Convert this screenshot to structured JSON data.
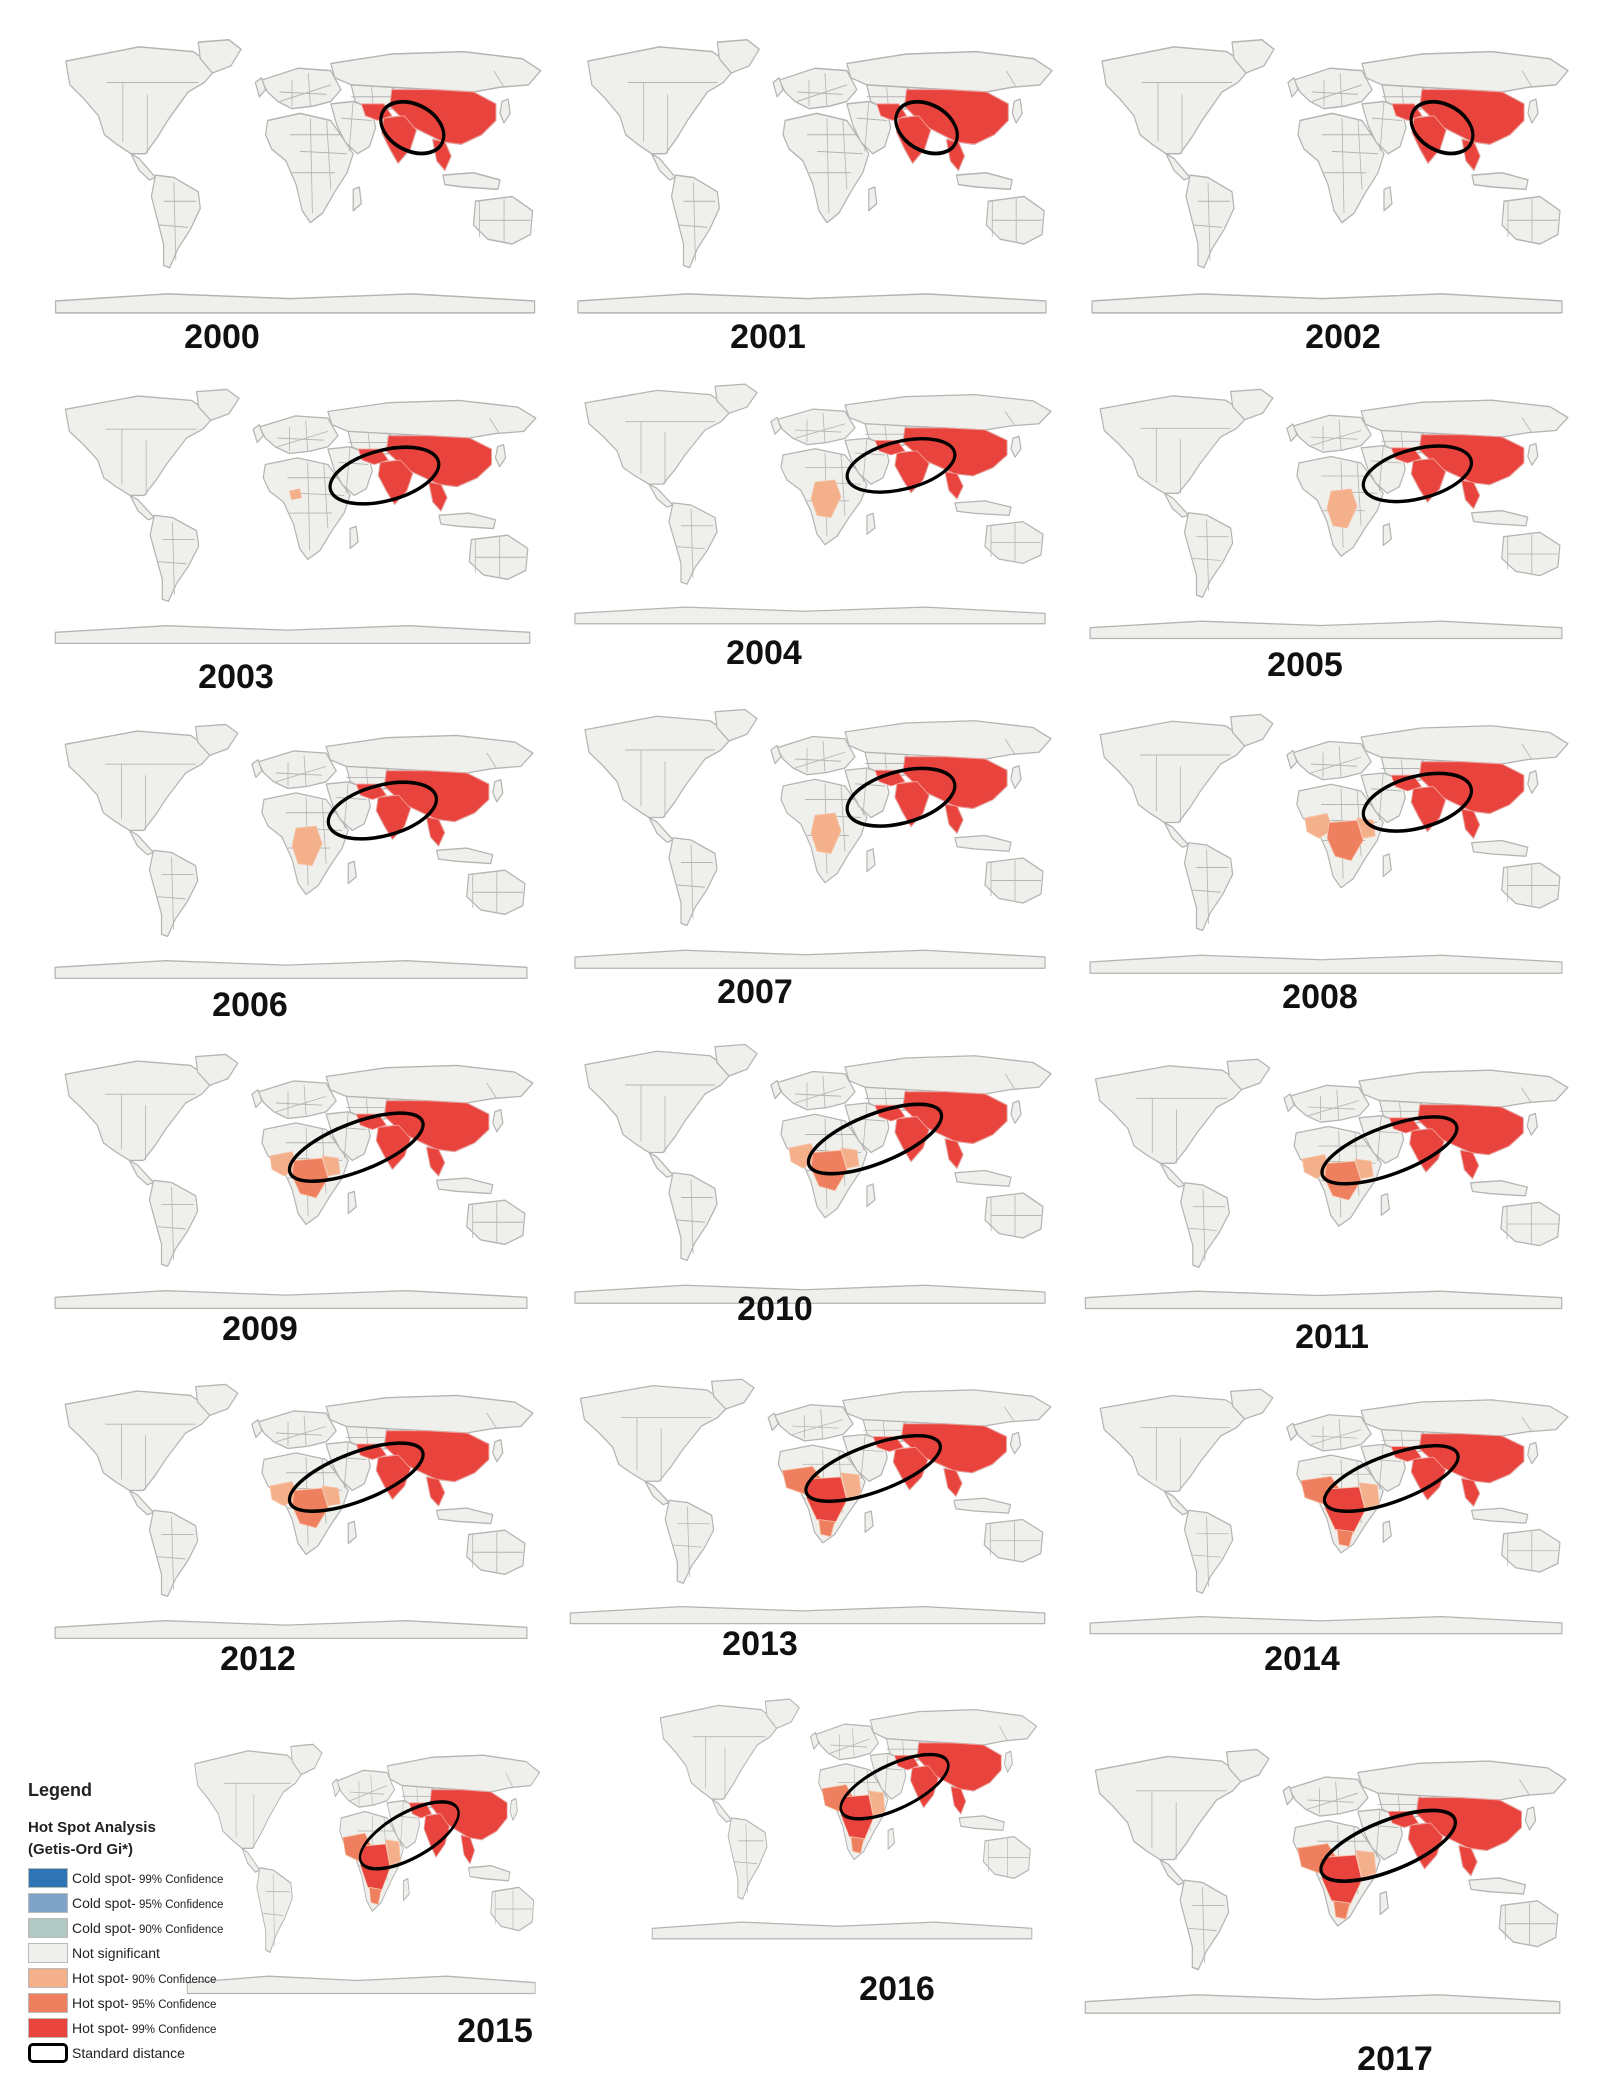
{
  "colors": {
    "ocean": "#ffffff",
    "land": "#efefeb",
    "border": "#b4b4b4",
    "hot90": "#f4b08a",
    "hot95": "#ee8060",
    "hot99": "#e8433d",
    "cold99": "#2f74b5",
    "cold95": "#7ea5c8",
    "cold90": "#b1c8c3",
    "ellipse": "#000000"
  },
  "maps": [
    {
      "year": "2000",
      "ellipse": "small",
      "africa": "none"
    },
    {
      "year": "2001",
      "ellipse": "small",
      "africa": "none"
    },
    {
      "year": "2002",
      "ellipse": "small",
      "africa": "none"
    },
    {
      "year": "2003",
      "ellipse": "medium",
      "africa": "spot"
    },
    {
      "year": "2004",
      "ellipse": "medium",
      "africa": "light"
    },
    {
      "year": "2005",
      "ellipse": "medium",
      "africa": "light"
    },
    {
      "year": "2006",
      "ellipse": "medium",
      "africa": "light"
    },
    {
      "year": "2007",
      "ellipse": "medium",
      "africa": "light"
    },
    {
      "year": "2008",
      "ellipse": "medium",
      "africa": "medium"
    },
    {
      "year": "2009",
      "ellipse": "large",
      "africa": "medium"
    },
    {
      "year": "2010",
      "ellipse": "large",
      "africa": "medium"
    },
    {
      "year": "2011",
      "ellipse": "large",
      "africa": "medium"
    },
    {
      "year": "2012",
      "ellipse": "large",
      "africa": "medium"
    },
    {
      "year": "2013",
      "ellipse": "large",
      "africa": "heavy"
    },
    {
      "year": "2014",
      "ellipse": "large",
      "africa": "heavy"
    },
    {
      "year": "2015",
      "ellipse": "large",
      "africa": "heavy"
    },
    {
      "year": "2016",
      "ellipse": "large",
      "africa": "heavy"
    },
    {
      "year": "2017",
      "ellipse": "large",
      "africa": "heavy"
    }
  ],
  "legend": {
    "title": "Legend",
    "subtitle_line1": "Hot Spot Analysis",
    "subtitle_line2": "(Getis-Ord Gi*)",
    "items": [
      {
        "prefix": "Cold spot-",
        "conf": " 99% Confidence",
        "color": "#2f74b5"
      },
      {
        "prefix": "Cold spot-",
        "conf": " 95% Confidence",
        "color": "#7ea5c8"
      },
      {
        "prefix": "Cold spot-",
        "conf": " 90% Confidence",
        "color": "#b1c8c3"
      },
      {
        "prefix": "Not significant",
        "conf": "",
        "color": "#efefeb"
      },
      {
        "prefix": "Hot spot-",
        "conf": " 90% Confidence",
        "color": "#f4b08a"
      },
      {
        "prefix": "Hot spot-",
        "conf": " 95% Confidence",
        "color": "#ee8060"
      },
      {
        "prefix": "Hot spot-",
        "conf": " 99% Confidence",
        "color": "#e8433d"
      }
    ],
    "standard_distance": "Standard distance"
  }
}
